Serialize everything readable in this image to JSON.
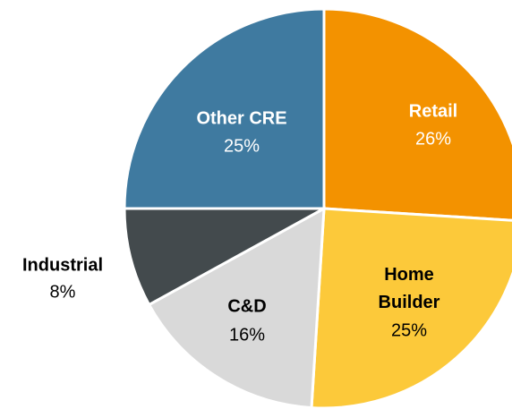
{
  "chart_data": {
    "type": "pie",
    "categories": [
      "Retail",
      "Home Builder",
      "C&D",
      "Industrial",
      "Other CRE"
    ],
    "values": [
      26,
      25,
      16,
      8,
      25
    ],
    "value_labels": [
      "26%",
      "25%",
      "16%",
      "8%",
      "25%"
    ],
    "colors": [
      "#f39200",
      "#fcc93a",
      "#d9d9d9",
      "#434a4d",
      "#3f7aa0"
    ]
  }
}
